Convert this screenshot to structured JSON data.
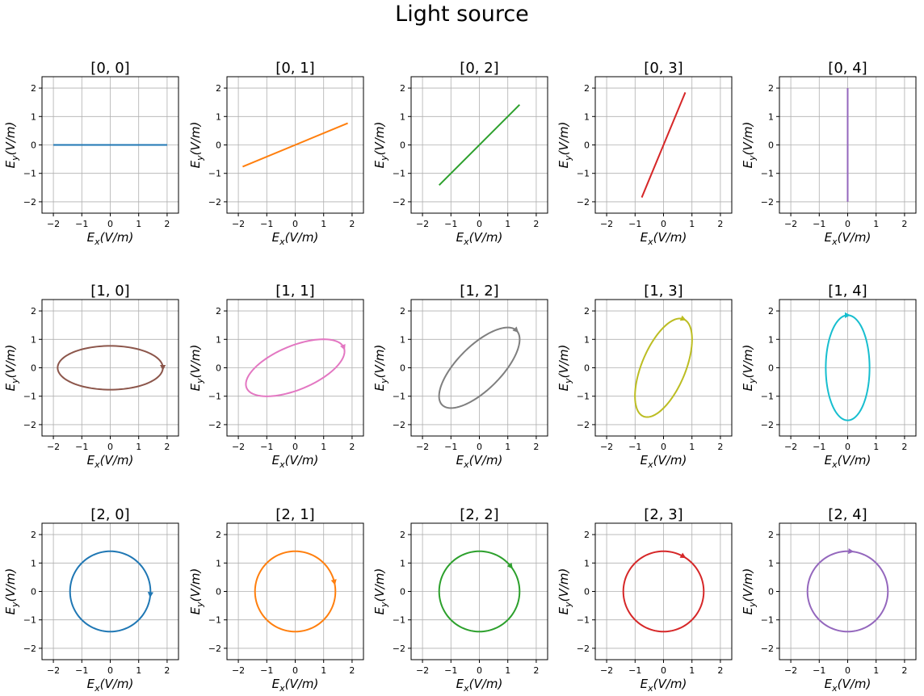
{
  "title": "Light source",
  "chart_data": {
    "type": "line",
    "title": "Light source",
    "grid": true,
    "xlim": [
      -2.4,
      2.4
    ],
    "ylim": [
      -2.4,
      2.4
    ],
    "xticks": [
      "−2",
      "−1",
      "0",
      "1",
      "2"
    ],
    "yticks": [
      "−2",
      "−1",
      "0",
      "1",
      "2"
    ],
    "xlabel": "E_x(V/m)",
    "ylabel": "E_y(V/m)",
    "xlabel_main": "E",
    "xlabel_sub": "x",
    "xlabel_unit": "(V/m)",
    "ylabel_main": "E",
    "ylabel_sub": "y",
    "ylabel_unit": "(V/m)",
    "panels": [
      {
        "title": "[0, 0]",
        "color": "#1f77b4",
        "kind": "line",
        "a": 2.0,
        "angle_deg": 0
      },
      {
        "title": "[0, 1]",
        "color": "#ff7f0e",
        "kind": "line",
        "a": 2.0,
        "angle_deg": 22.5
      },
      {
        "title": "[0, 2]",
        "color": "#2ca02c",
        "kind": "line",
        "a": 2.0,
        "angle_deg": 45
      },
      {
        "title": "[0, 3]",
        "color": "#d62728",
        "kind": "line",
        "a": 2.0,
        "angle_deg": 67.5
      },
      {
        "title": "[0, 4]",
        "color": "#9467bd",
        "kind": "line",
        "a": 2.0,
        "angle_deg": 90
      },
      {
        "title": "[1, 0]",
        "color": "#8c564b",
        "kind": "ellipse",
        "a": 1.85,
        "b": 0.77,
        "angle_deg": 0,
        "arrow_t": 0.0
      },
      {
        "title": "[1, 1]",
        "color": "#e377c2",
        "kind": "ellipse",
        "a": 1.85,
        "b": 0.77,
        "angle_deg": 22.5,
        "arrow_t": 0.0
      },
      {
        "title": "[1, 2]",
        "color": "#7f7f7f",
        "kind": "ellipse",
        "a": 1.85,
        "b": 0.77,
        "angle_deg": 45,
        "arrow_t": 0.0
      },
      {
        "title": "[1, 3]",
        "color": "#bcbd22",
        "kind": "ellipse",
        "a": 1.85,
        "b": 0.77,
        "angle_deg": 67.5,
        "arrow_t": 0.0
      },
      {
        "title": "[1, 4]",
        "color": "#17becf",
        "kind": "ellipse",
        "a": 1.85,
        "b": 0.77,
        "angle_deg": 90,
        "arrow_t": 0.0
      },
      {
        "title": "[2, 0]",
        "color": "#1f77b4",
        "kind": "circle",
        "r": 1.414,
        "arrow_deg": -5
      },
      {
        "title": "[2, 1]",
        "color": "#ff7f0e",
        "kind": "circle",
        "r": 1.414,
        "arrow_deg": 13
      },
      {
        "title": "[2, 2]",
        "color": "#2ca02c",
        "kind": "circle",
        "r": 1.414,
        "arrow_deg": 38
      },
      {
        "title": "[2, 3]",
        "color": "#d62728",
        "kind": "circle",
        "r": 1.414,
        "arrow_deg": 60
      },
      {
        "title": "[2, 4]",
        "color": "#9467bd",
        "kind": "circle",
        "r": 1.414,
        "arrow_deg": 85
      }
    ]
  }
}
